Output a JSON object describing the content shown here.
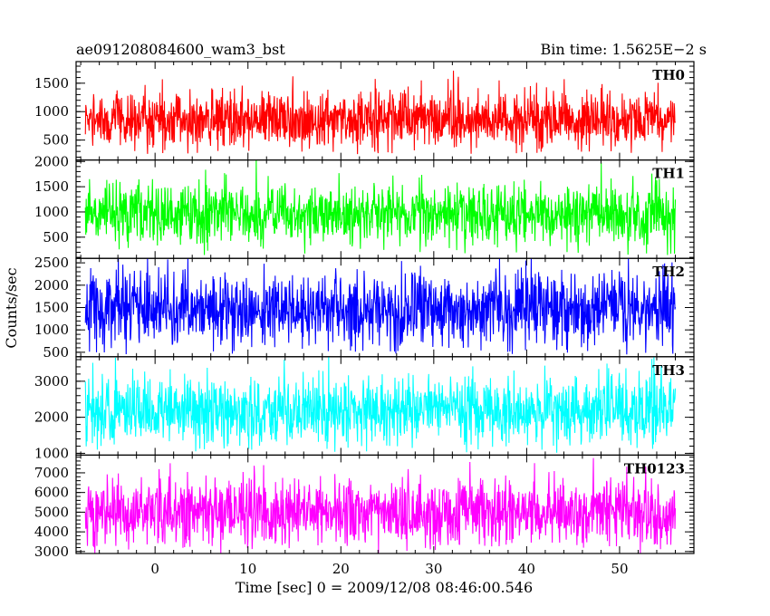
{
  "header": {
    "left_title": "ae091208084600_wam3_bst",
    "right_title": "Bin time: 1.5625E−2 s"
  },
  "ylabel": "Counts/sec",
  "xlabel": "Time [sec] 0 = 2009/12/08 08:46:00.546",
  "chart_data": {
    "type": "line",
    "x_range": [
      -8.5,
      58
    ],
    "x_ticks": [
      0,
      10,
      20,
      30,
      40,
      50
    ],
    "data_x_range": [
      -7.5,
      56.0
    ],
    "bin_time_s": 0.015625,
    "panels": [
      {
        "name": "TH0",
        "color": "#ff0000",
        "y_range": [
          150,
          1880
        ],
        "y_ticks": [
          500,
          1000,
          1500
        ],
        "mean": 850,
        "spread": 260,
        "min_floor": 280,
        "max_cap": 1880
      },
      {
        "name": "TH1",
        "color": "#00ff00",
        "y_range": [
          80,
          2030
        ],
        "y_ticks": [
          500,
          1000,
          1500,
          2000
        ],
        "mean": 950,
        "spread": 300,
        "min_floor": 160,
        "max_cap": 2030
      },
      {
        "name": "TH2",
        "color": "#0000ff",
        "y_range": [
          400,
          2600
        ],
        "y_ticks": [
          500,
          1000,
          1500,
          2000,
          2500
        ],
        "mean": 1450,
        "spread": 420,
        "min_floor": 480,
        "max_cap": 2600
      },
      {
        "name": "TH3",
        "color": "#00ffff",
        "y_range": [
          950,
          3680
        ],
        "y_ticks": [
          1000,
          2000,
          3000
        ],
        "mean": 2150,
        "spread": 480,
        "min_floor": 1100,
        "max_cap": 3680
      },
      {
        "name": "TH0123",
        "color": "#ff00ff",
        "y_range": [
          2900,
          7900
        ],
        "y_ticks": [
          3000,
          4000,
          5000,
          6000,
          7000
        ],
        "mean": 5000,
        "spread": 850,
        "min_floor": 3150,
        "max_cap": 7900
      }
    ]
  }
}
